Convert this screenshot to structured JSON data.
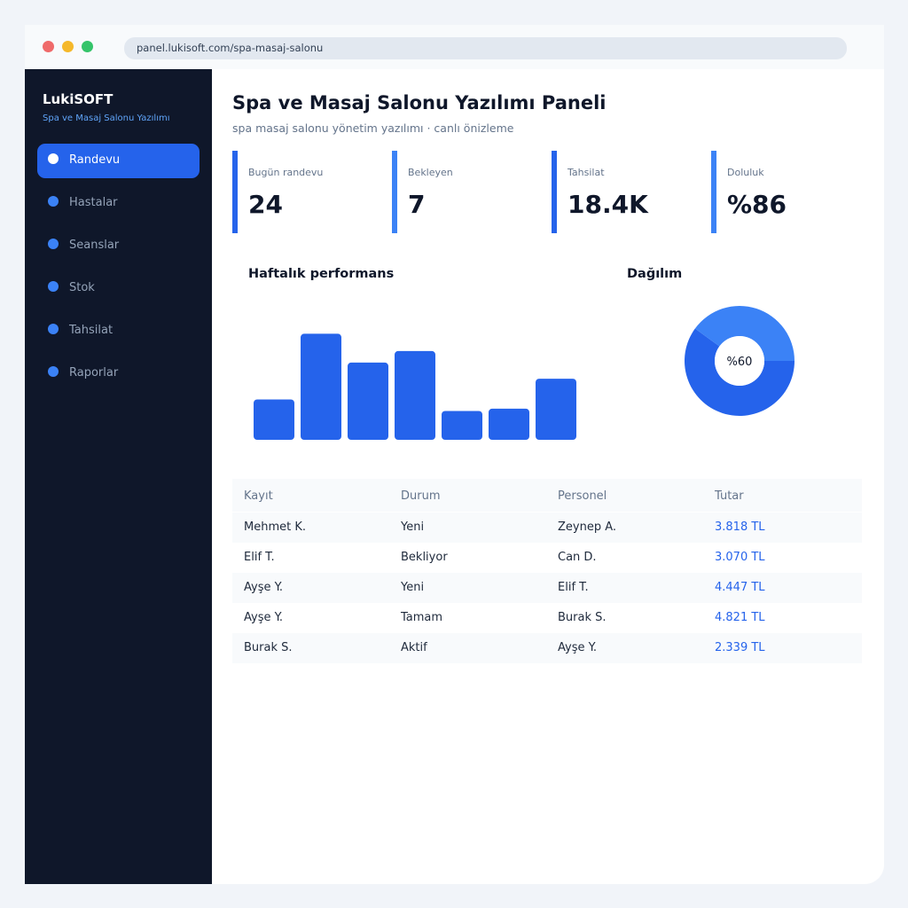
{
  "browser": {
    "url": "panel.lukisoft.com/spa-masaj-salonu"
  },
  "sidebar": {
    "brand": "LukiSOFT",
    "brand_sub": "Spa ve Masaj Salonu Yazılımı",
    "items": [
      {
        "label": "Randevu",
        "active": true
      },
      {
        "label": "Hastalar",
        "active": false
      },
      {
        "label": "Seanslar",
        "active": false
      },
      {
        "label": "Stok",
        "active": false
      },
      {
        "label": "Tahsilat",
        "active": false
      },
      {
        "label": "Raporlar",
        "active": false
      }
    ]
  },
  "header": {
    "title": "Spa ve Masaj Salonu Yazılımı Paneli",
    "subtitle": "spa masaj salonu yönetim yazılımı · canlı önizleme"
  },
  "stats": [
    {
      "label": "Bugün randevu",
      "value": "24"
    },
    {
      "label": "Bekleyen",
      "value": "7"
    },
    {
      "label": "Tahsilat",
      "value": "18.4K"
    },
    {
      "label": "Doluluk",
      "value": "%86"
    }
  ],
  "performance": {
    "title": "Haftalık performans"
  },
  "distribution": {
    "title": "Dağılım",
    "center_label": "%60"
  },
  "chart_data": [
    {
      "type": "bar",
      "title": "Haftalık performans",
      "values": [
        35,
        92,
        67,
        77,
        25,
        27,
        53
      ],
      "ylim": [
        0,
        100
      ],
      "color": "#2563eb"
    },
    {
      "type": "pie",
      "title": "Dağılım",
      "slices": [
        {
          "value": 60,
          "color": "#2563eb"
        },
        {
          "value": 40,
          "color": "#3b82f6"
        }
      ]
    }
  ],
  "table": {
    "headers": [
      "Kayıt",
      "Durum",
      "Personel",
      "Tutar"
    ],
    "rows": [
      [
        "Mehmet K.",
        "Yeni",
        "Zeynep A.",
        "3.818 TL"
      ],
      [
        "Elif T.",
        "Bekliyor",
        "Can D.",
        "3.070 TL"
      ],
      [
        "Ayşe Y.",
        "Yeni",
        "Elif T.",
        "4.447 TL"
      ],
      [
        "Ayşe Y.",
        "Tamam",
        "Burak S.",
        "4.821 TL"
      ],
      [
        "Burak S.",
        "Aktif",
        "Ayşe Y.",
        "2.339 TL"
      ]
    ]
  },
  "colors": {
    "accent": "#2563eb",
    "accent_light": "#3b82f6",
    "sidebar_bg": "#0f172a"
  }
}
